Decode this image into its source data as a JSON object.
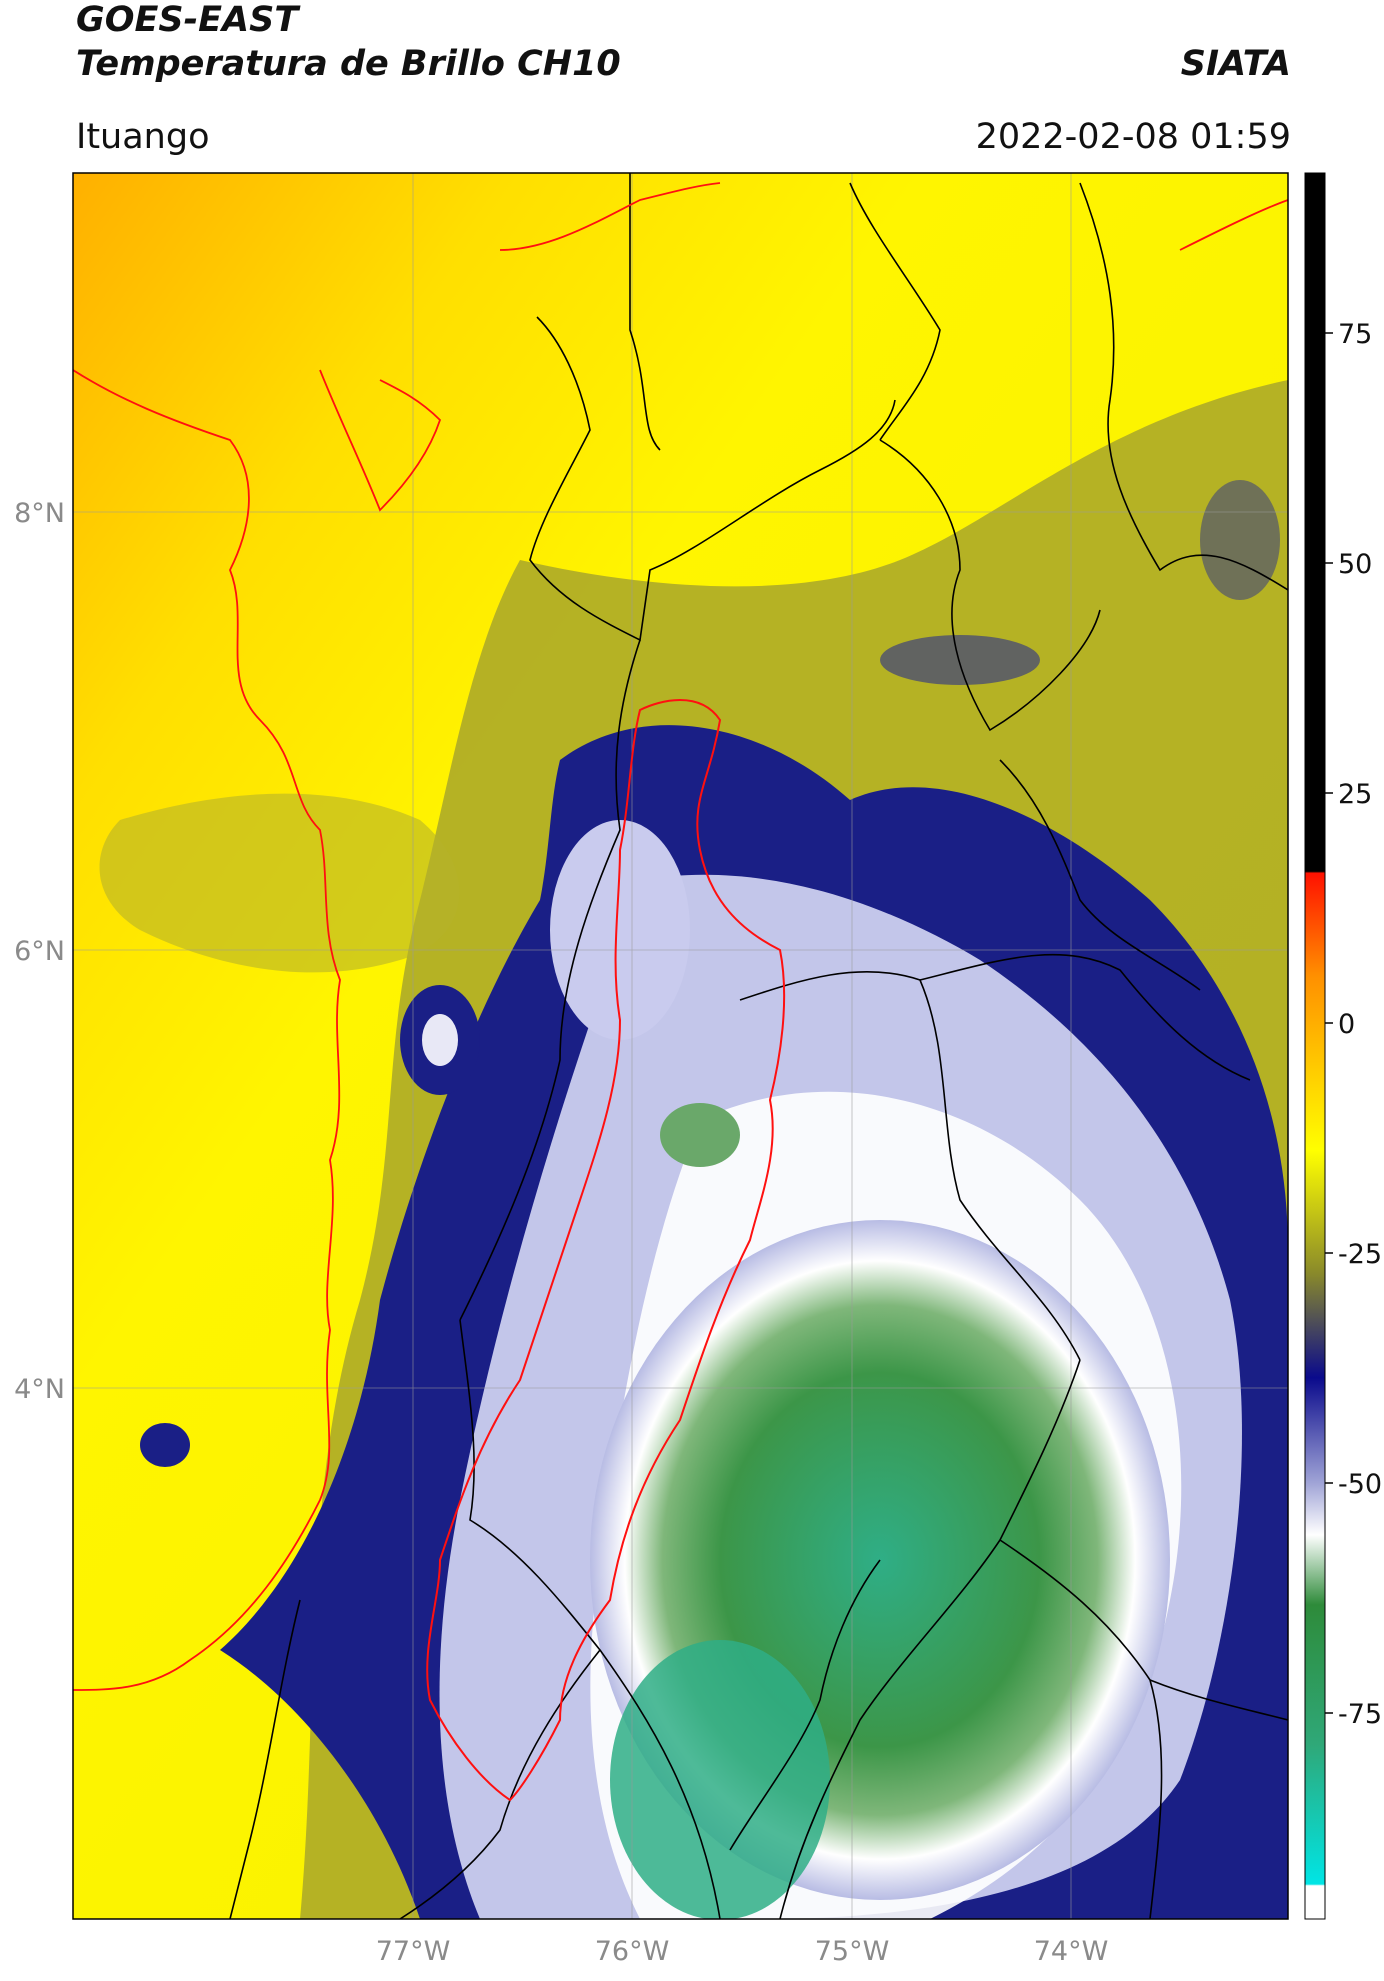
{
  "header": {
    "satellite": "GOES-EAST",
    "product": "Temperatura de Brillo CH10",
    "organization": "SIATA",
    "region": "Ituango",
    "timestamp": "2022-02-08 01:59"
  },
  "map": {
    "lon_labels": [
      "77°W",
      "76°W",
      "75°W",
      "74°W"
    ],
    "lat_labels": [
      "8°N",
      "6°N",
      "4°N"
    ],
    "colors": {
      "sea_orange": "#ffbf00",
      "sea_yellow": "#fff200",
      "olive": "#9a9a1e",
      "navy": "#14197a",
      "lavender": "#b9bee6",
      "green": "#3f9a4a",
      "teal": "#2fb48f",
      "coastline": "#ff0000",
      "borders": "#000000"
    }
  },
  "colorbar": {
    "tick_labels": [
      "75",
      "50",
      "25",
      "0",
      "-25",
      "-50",
      "-75"
    ],
    "colors": {
      "black": "#000000",
      "red": "#ff1100",
      "orange": "#ff9900",
      "yellow": "#ffff00",
      "olive": "#6e6e2a",
      "navy": "#0a0a8c",
      "white": "#ffffff",
      "green": "#2e8b3a",
      "cyan": "#00e5e5"
    }
  }
}
